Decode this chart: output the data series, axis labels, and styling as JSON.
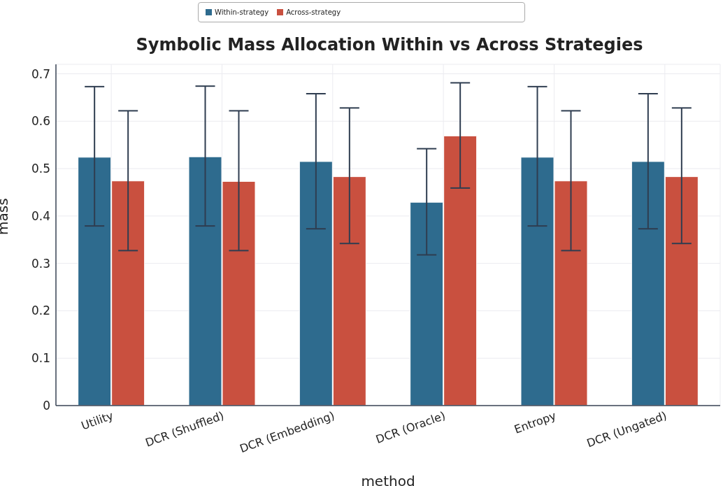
{
  "chart_data": {
    "type": "bar",
    "title": "Symbolic Mass Allocation Within vs Across Strategies",
    "xlabel": "method",
    "ylabel": "mass",
    "categories": [
      "Utility",
      "DCR (Shuffled)",
      "DCR (Embedding)",
      "DCR (Oracle)",
      "Entropy",
      "DCR (Ungated)"
    ],
    "series": [
      {
        "name": "Within-strategy",
        "color": "#2e6b8e",
        "values": [
          0.524,
          0.525,
          0.515,
          0.429,
          0.524,
          0.515
        ],
        "errors": [
          [
            0.379,
            0.673
          ],
          [
            0.379,
            0.674
          ],
          [
            0.373,
            0.658
          ],
          [
            0.318,
            0.542
          ],
          [
            0.379,
            0.673
          ],
          [
            0.373,
            0.658
          ]
        ]
      },
      {
        "name": "Across-strategy",
        "color": "#c9503f",
        "values": [
          0.474,
          0.473,
          0.483,
          0.569,
          0.474,
          0.483
        ],
        "errors": [
          [
            0.327,
            0.622
          ],
          [
            0.327,
            0.622
          ],
          [
            0.342,
            0.628
          ],
          [
            0.459,
            0.681
          ],
          [
            0.327,
            0.622
          ],
          [
            0.342,
            0.628
          ]
        ]
      }
    ],
    "ylim": [
      0,
      0.72
    ],
    "yticks": [
      0,
      0.1,
      0.2,
      0.3,
      0.4,
      0.5,
      0.6,
      0.7
    ],
    "grid": true,
    "legend": "top"
  }
}
